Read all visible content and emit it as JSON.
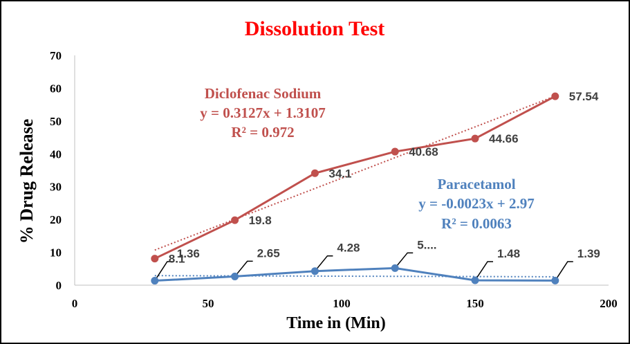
{
  "chart_data": {
    "type": "line",
    "title": "Dissolution Test",
    "xlabel": "Time in (Min)",
    "ylabel": "% Drug Release",
    "xlim": [
      0,
      200
    ],
    "ylim": [
      0,
      70
    ],
    "xticks": [
      0,
      50,
      100,
      150,
      200
    ],
    "yticks": [
      0,
      10,
      20,
      30,
      40,
      50,
      60,
      70
    ],
    "grid": false,
    "colors": {
      "title": "#ff0000",
      "diclofenac": "#c0504d",
      "paracetamol": "#4f81bd"
    },
    "series": [
      {
        "name": "Diclofenac Sodium",
        "x": [
          30,
          60,
          90,
          120,
          150,
          180
        ],
        "y": [
          8.1,
          19.8,
          34.1,
          40.68,
          44.66,
          57.54
        ],
        "labels": [
          "8.1",
          "19.8",
          "34.1",
          "40.68",
          "44.66",
          "57.54"
        ],
        "trendline": {
          "equation": "y = 0.3127x + 1.3107",
          "r2": "R² = 0.972"
        }
      },
      {
        "name": "Paracetamol",
        "x": [
          30,
          60,
          90,
          120,
          150,
          180
        ],
        "y": [
          1.36,
          2.65,
          4.28,
          5.2,
          1.48,
          1.39
        ],
        "labels": [
          "1.36",
          "2.65",
          "4.28",
          "5....",
          "1.48",
          "1.39"
        ],
        "trendline": {
          "equation": "y = -0.0023x + 2.97",
          "r2": "R² = 0.0063"
        }
      }
    ]
  }
}
